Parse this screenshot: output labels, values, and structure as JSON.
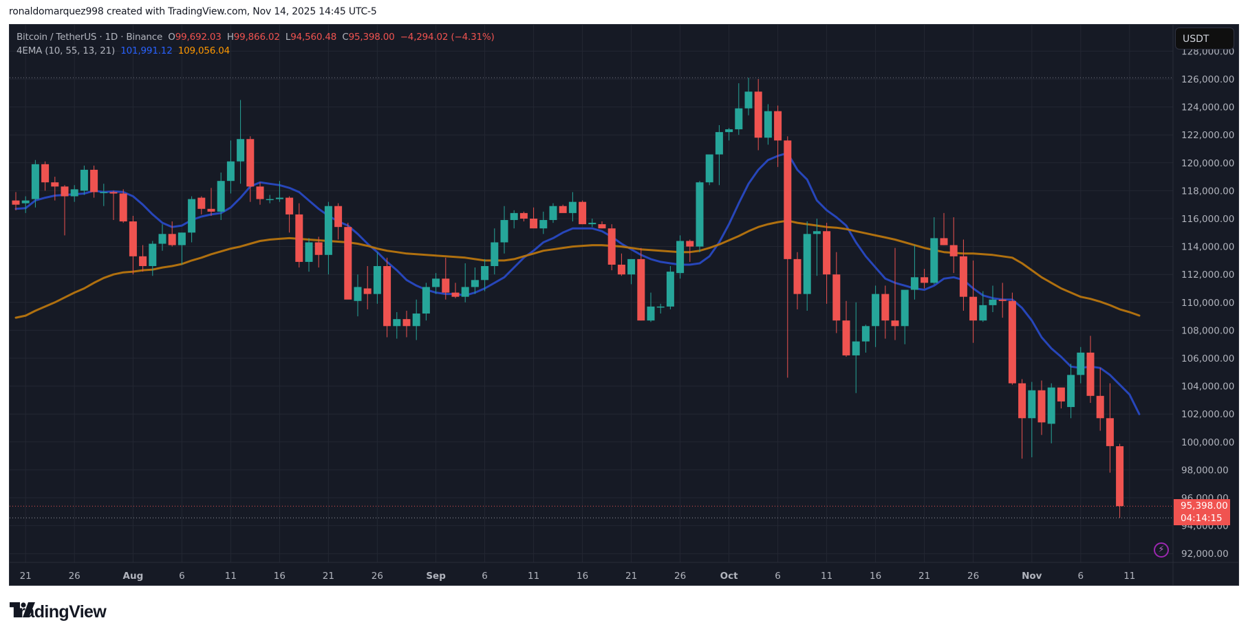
{
  "credit": "ronaldomarquez998 created with TradingView.com, Nov 14, 2025 14:45 UTC-5",
  "legend": {
    "symbol": "Bitcoin / TetherUS · 1D · Binance",
    "open_label": "O",
    "open": "99,692.03",
    "high_label": "H",
    "high": "99,866.02",
    "low_label": "L",
    "low": "94,560.48",
    "close_label": "C",
    "close": "95,398.00",
    "change": "−4,294.02 (−4.31%)",
    "indicator": "4EMA (10, 55, 13, 21)",
    "ema_fast_value": "101,991.12",
    "ema_slow_value": "109,056.04"
  },
  "currency_button": "USDT",
  "last_price_tag": {
    "price": "95,398.00",
    "countdown": "04:14:15"
  },
  "footer_brand": "TradingView",
  "colors": {
    "background": "#161a25",
    "grid": "#232733",
    "up": "#26a69a",
    "down": "#ef5350",
    "ema_fast": "#2849c2",
    "ema_slow": "#b8750e",
    "axis_text": "#b2b5be"
  },
  "chart_data": {
    "type": "candlestick",
    "title": "Bitcoin / TetherUS · 1D · Binance",
    "xlabel": "",
    "ylabel": "USDT",
    "ylim": [
      91000,
      129500
    ],
    "grid": true,
    "y_ticks": [
      92000,
      94000,
      96000,
      98000,
      100000,
      102000,
      104000,
      106000,
      108000,
      110000,
      112000,
      114000,
      116000,
      118000,
      120000,
      122000,
      124000,
      126000,
      128000
    ],
    "x_tick_labels": [
      {
        "label": "21",
        "day": 1
      },
      {
        "label": "26",
        "day": 6
      },
      {
        "label": "Aug",
        "day": 12,
        "bold": true
      },
      {
        "label": "6",
        "day": 17
      },
      {
        "label": "11",
        "day": 22
      },
      {
        "label": "16",
        "day": 27
      },
      {
        "label": "21",
        "day": 32
      },
      {
        "label": "26",
        "day": 37
      },
      {
        "label": "Sep",
        "day": 43,
        "bold": true
      },
      {
        "label": "6",
        "day": 48
      },
      {
        "label": "11",
        "day": 53
      },
      {
        "label": "16",
        "day": 58
      },
      {
        "label": "21",
        "day": 63
      },
      {
        "label": "26",
        "day": 68
      },
      {
        "label": "Oct",
        "day": 73,
        "bold": true
      },
      {
        "label": "6",
        "day": 78
      },
      {
        "label": "11",
        "day": 83
      },
      {
        "label": "16",
        "day": 88
      },
      {
        "label": "21",
        "day": 93
      },
      {
        "label": "26",
        "day": 98
      },
      {
        "label": "Nov",
        "day": 104,
        "bold": true
      },
      {
        "label": "6",
        "day": 109
      },
      {
        "label": "11",
        "day": 114
      }
    ],
    "ath_line": 126100,
    "low_line": 94560,
    "last_price": 95398,
    "legend": [
      "EMA 10",
      "EMA 55"
    ],
    "candles_note": "[O,H,L,C] per day starting 2025-07-20",
    "candles": [
      [
        117300,
        117900,
        116600,
        117000
      ],
      [
        117100,
        117600,
        116400,
        117300
      ],
      [
        117400,
        120200,
        116800,
        119900
      ],
      [
        119900,
        120100,
        118000,
        118600
      ],
      [
        118600,
        119000,
        117300,
        118300
      ],
      [
        118300,
        118400,
        114800,
        117600
      ],
      [
        117600,
        118400,
        117200,
        118100
      ],
      [
        118000,
        119800,
        117700,
        119500
      ],
      [
        119500,
        119800,
        117500,
        117900
      ],
      [
        117900,
        118500,
        116900,
        117900
      ],
      [
        117900,
        118000,
        115900,
        117800
      ],
      [
        117800,
        118100,
        115700,
        115800
      ],
      [
        115800,
        116200,
        112000,
        113300
      ],
      [
        113300,
        114100,
        112200,
        112600
      ],
      [
        112600,
        114400,
        111900,
        114200
      ],
      [
        114200,
        115600,
        113700,
        114900
      ],
      [
        114900,
        115800,
        114000,
        114100
      ],
      [
        114100,
        115000,
        112700,
        115000
      ],
      [
        115000,
        117600,
        114300,
        117400
      ],
      [
        117500,
        117600,
        116300,
        116700
      ],
      [
        116700,
        118200,
        116200,
        116500
      ],
      [
        116500,
        119300,
        115900,
        118700
      ],
      [
        118700,
        121600,
        117800,
        120100
      ],
      [
        120100,
        124500,
        118500,
        121700
      ],
      [
        121700,
        121900,
        117200,
        118300
      ],
      [
        118300,
        118600,
        117000,
        117400
      ],
      [
        117400,
        117700,
        117100,
        117400
      ],
      [
        117400,
        118700,
        117200,
        117500
      ],
      [
        117500,
        117600,
        115000,
        116300
      ],
      [
        116300,
        117100,
        112500,
        112900
      ],
      [
        112900,
        114600,
        112200,
        114300
      ],
      [
        114300,
        114700,
        112500,
        113400
      ],
      [
        113400,
        117200,
        112000,
        116900
      ],
      [
        116900,
        117100,
        114500,
        115400
      ],
      [
        115400,
        115700,
        110800,
        110200
      ],
      [
        110100,
        112000,
        109000,
        111100
      ],
      [
        111000,
        112600,
        109500,
        110600
      ],
      [
        110600,
        113600,
        109900,
        112600
      ],
      [
        112600,
        113200,
        107500,
        108300
      ],
      [
        108300,
        109300,
        107400,
        108800
      ],
      [
        108800,
        109400,
        107500,
        108300
      ],
      [
        108300,
        110200,
        107300,
        109200
      ],
      [
        109200,
        111400,
        108700,
        111100
      ],
      [
        111100,
        112100,
        110600,
        111700
      ],
      [
        111700,
        113200,
        110200,
        110700
      ],
      [
        110700,
        111400,
        110300,
        110400
      ],
      [
        110400,
        112800,
        110000,
        111100
      ],
      [
        111100,
        112500,
        110600,
        111600
      ],
      [
        111600,
        113100,
        110800,
        112600
      ],
      [
        112600,
        115300,
        112000,
        114300
      ],
      [
        114300,
        116900,
        113500,
        115900
      ],
      [
        115900,
        116600,
        115300,
        116400
      ],
      [
        116400,
        116500,
        115800,
        116000
      ],
      [
        116000,
        116800,
        115400,
        115300
      ],
      [
        115300,
        116500,
        114900,
        115900
      ],
      [
        115900,
        117100,
        115700,
        116900
      ],
      [
        116900,
        117000,
        116600,
        116400
      ],
      [
        116400,
        117900,
        115800,
        117200
      ],
      [
        117200,
        117300,
        115600,
        115600
      ],
      [
        115600,
        116000,
        115400,
        115700
      ],
      [
        115600,
        115800,
        115300,
        115300
      ],
      [
        115300,
        115600,
        112300,
        112700
      ],
      [
        112700,
        113500,
        111900,
        112000
      ],
      [
        112000,
        113000,
        111300,
        113100
      ],
      [
        113100,
        113900,
        108700,
        108700
      ],
      [
        108700,
        110700,
        108600,
        109700
      ],
      [
        109700,
        109900,
        109200,
        109700
      ],
      [
        109700,
        112600,
        109500,
        112200
      ],
      [
        112100,
        114800,
        111700,
        114400
      ],
      [
        114400,
        114500,
        112900,
        114000
      ],
      [
        114000,
        118700,
        113600,
        118600
      ],
      [
        118600,
        120500,
        118400,
        120600
      ],
      [
        120600,
        122700,
        118400,
        122200
      ],
      [
        122200,
        122500,
        121600,
        122400
      ],
      [
        122400,
        125700,
        122000,
        123900
      ],
      [
        123900,
        126100,
        123400,
        125100
      ],
      [
        125100,
        126000,
        120900,
        121800
      ],
      [
        121800,
        124200,
        121300,
        123700
      ],
      [
        123700,
        124100,
        119700,
        121600
      ],
      [
        121600,
        121900,
        104600,
        113100
      ],
      [
        113100,
        113600,
        109500,
        110600
      ],
      [
        110600,
        115800,
        109400,
        114900
      ],
      [
        114900,
        116000,
        111900,
        115100
      ],
      [
        115100,
        115700,
        109900,
        112000
      ],
      [
        112000,
        113600,
        107800,
        108700
      ],
      [
        108700,
        110100,
        106100,
        106200
      ],
      [
        106200,
        110000,
        103500,
        107200
      ],
      [
        107200,
        108400,
        106400,
        108300
      ],
      [
        108300,
        111200,
        106800,
        110600
      ],
      [
        110600,
        111200,
        107400,
        108700
      ],
      [
        108700,
        113900,
        107300,
        108300
      ],
      [
        108300,
        110400,
        107000,
        110900
      ],
      [
        110900,
        114100,
        110200,
        111800
      ],
      [
        111800,
        112400,
        111000,
        111400
      ],
      [
        111400,
        116100,
        111300,
        114600
      ],
      [
        114600,
        116400,
        114100,
        114100
      ],
      [
        114100,
        116100,
        112100,
        113300
      ],
      [
        113300,
        114500,
        109400,
        110400
      ],
      [
        110400,
        113000,
        107100,
        108700
      ],
      [
        108700,
        110800,
        108600,
        109800
      ],
      [
        109800,
        111200,
        109300,
        110200
      ],
      [
        110200,
        111400,
        108900,
        110100
      ],
      [
        110100,
        110700,
        104100,
        104200
      ],
      [
        104200,
        104500,
        98800,
        101700
      ],
      [
        101700,
        104300,
        98900,
        103700
      ],
      [
        103700,
        104400,
        100500,
        101400
      ],
      [
        101300,
        104200,
        99900,
        103900
      ],
      [
        103900,
        103400,
        102400,
        102900
      ],
      [
        102500,
        105600,
        101700,
        104800
      ],
      [
        104800,
        106800,
        104200,
        106400
      ],
      [
        106400,
        107600,
        102800,
        103300
      ],
      [
        103300,
        105300,
        100800,
        101700
      ],
      [
        101700,
        104200,
        97800,
        99700
      ],
      [
        99692,
        99866,
        94560,
        95398
      ]
    ],
    "series": [
      {
        "name": "EMA (fast)",
        "color": "#2849c2",
        "values": [
          116700,
          116750,
          117300,
          117500,
          117650,
          117700,
          117750,
          117800,
          118000,
          117900,
          117950,
          117900,
          117600,
          117000,
          116300,
          115700,
          115400,
          115500,
          115900,
          116150,
          116300,
          116400,
          116800,
          117500,
          118300,
          118600,
          118500,
          118400,
          118200,
          117900,
          117300,
          116700,
          116200,
          115800,
          115500,
          114900,
          114200,
          113600,
          112900,
          112300,
          111600,
          111200,
          110900,
          110700,
          110600,
          110600,
          110500,
          110700,
          111000,
          111400,
          111800,
          112500,
          113200,
          113700,
          114300,
          114600,
          115000,
          115300,
          115300,
          115300,
          115100,
          114700,
          114200,
          113800,
          113400,
          113100,
          112900,
          112800,
          112700,
          112700,
          112800,
          113300,
          114300,
          115600,
          117100,
          118500,
          119500,
          120200,
          120500,
          120700,
          119500,
          118800,
          117300,
          116600,
          116100,
          115500,
          114300,
          113300,
          112500,
          111700,
          111400,
          111200,
          111000,
          110900,
          111200,
          111700,
          111800,
          111600,
          111000,
          110500,
          110300,
          110200,
          110200,
          109600,
          108700,
          107500,
          106700,
          106100,
          105400,
          105300,
          105400,
          105300,
          104800,
          104100,
          103400,
          101991
        ]
      },
      {
        "name": "EMA (slow)",
        "color": "#b8750e",
        "values": [
          108900,
          109050,
          109400,
          109700,
          110000,
          110350,
          110700,
          111000,
          111400,
          111750,
          112000,
          112150,
          112200,
          112300,
          112350,
          112500,
          112600,
          112750,
          113000,
          113200,
          113450,
          113650,
          113850,
          114000,
          114200,
          114400,
          114500,
          114550,
          114600,
          114550,
          114500,
          114450,
          114400,
          114350,
          114300,
          114200,
          114050,
          113850,
          113700,
          113600,
          113500,
          113450,
          113400,
          113350,
          113300,
          113250,
          113200,
          113100,
          113000,
          113000,
          113000,
          113100,
          113300,
          113500,
          113700,
          113800,
          113900,
          114000,
          114050,
          114100,
          114100,
          114050,
          114000,
          113900,
          113800,
          113750,
          113700,
          113650,
          113600,
          113600,
          113700,
          113900,
          114150,
          114450,
          114750,
          115100,
          115400,
          115600,
          115750,
          115850,
          115700,
          115600,
          115500,
          115400,
          115350,
          115250,
          115100,
          114950,
          114800,
          114650,
          114500,
          114300,
          114100,
          113900,
          113750,
          113600,
          113550,
          113500,
          113500,
          113450,
          113400,
          113300,
          113200,
          112800,
          112300,
          111800,
          111400,
          111000,
          110700,
          110400,
          110250,
          110050,
          109800,
          109500,
          109300,
          109056
        ]
      }
    ]
  }
}
